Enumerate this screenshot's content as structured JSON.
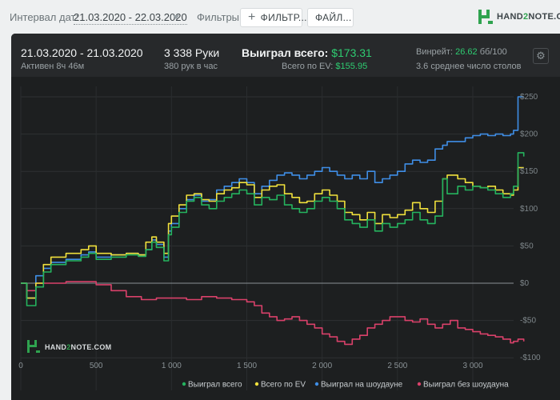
{
  "toolbar": {
    "date_interval_label": "Интервал дат:",
    "date_interval_value": "21.03.2020 - 22.03.2020",
    "filters_label": "Фильтры:",
    "filter_button": "ФИЛЬТР...",
    "file_button": "ФАЙЛ...",
    "logo_prefix": "HAND",
    "logo_two": "2",
    "logo_suffix": "NOTE.COM"
  },
  "stats": {
    "date_range": "21.03.2020 - 21.03.2020",
    "active": "Активен 8ч 46м",
    "hands": "3 338 Руки",
    "hands_per_hour": "380 рук в час",
    "won_total_label": "Выиграл всего:",
    "won_total_value": "$173.31",
    "ev_label": "Всего по EV:",
    "ev_value": "$155.95",
    "winrate_label": "Винрейт:",
    "winrate_value": "26.62",
    "winrate_unit": "бб/100",
    "avg_tables": "3.6 среднее число столов"
  },
  "colors": {
    "won_total": "#25b35e",
    "ev": "#f0e03c",
    "showdown": "#3f8ee6",
    "non_showdown": "#d9416a",
    "brand_green": "#2fa34f"
  },
  "watermark": {
    "prefix": "HAND",
    "two": "2",
    "suffix": "NOTE.COM"
  },
  "chart_data": {
    "type": "line",
    "x_ticks": [
      0,
      500,
      1000,
      1500,
      2000,
      2500,
      3000
    ],
    "x_tick_labels": [
      "0",
      "500",
      "1 000",
      "1 500",
      "2 000",
      "2 500",
      "3 000"
    ],
    "y_ticks": [
      -100,
      -50,
      0,
      50,
      100,
      150,
      200,
      250
    ],
    "y_tick_labels": [
      "-$100",
      "-$50",
      "$0",
      "$50",
      "$100",
      "$150",
      "$200",
      "$250"
    ],
    "xlim": [
      0,
      3338
    ],
    "ylim": [
      -100,
      260
    ],
    "legend_position": "bottom-center",
    "series": [
      {
        "name": "Выиграл всего",
        "color": "#25b35e",
        "points": [
          [
            0,
            0
          ],
          [
            40,
            -30
          ],
          [
            100,
            -5
          ],
          [
            150,
            15
          ],
          [
            200,
            25
          ],
          [
            300,
            30
          ],
          [
            400,
            35
          ],
          [
            450,
            40
          ],
          [
            500,
            32
          ],
          [
            600,
            35
          ],
          [
            700,
            38
          ],
          [
            780,
            36
          ],
          [
            830,
            45
          ],
          [
            870,
            55
          ],
          [
            900,
            48
          ],
          [
            950,
            30
          ],
          [
            980,
            65
          ],
          [
            1000,
            75
          ],
          [
            1050,
            95
          ],
          [
            1100,
            110
          ],
          [
            1150,
            115
          ],
          [
            1200,
            105
          ],
          [
            1250,
            100
          ],
          [
            1300,
            110
          ],
          [
            1350,
            115
          ],
          [
            1400,
            120
          ],
          [
            1450,
            125
          ],
          [
            1500,
            120
          ],
          [
            1550,
            105
          ],
          [
            1600,
            115
          ],
          [
            1650,
            112
          ],
          [
            1700,
            118
          ],
          [
            1750,
            105
          ],
          [
            1800,
            100
          ],
          [
            1850,
            95
          ],
          [
            1900,
            100
          ],
          [
            1950,
            110
          ],
          [
            2000,
            115
          ],
          [
            2050,
            110
          ],
          [
            2100,
            100
          ],
          [
            2150,
            85
          ],
          [
            2200,
            80
          ],
          [
            2250,
            75
          ],
          [
            2300,
            85
          ],
          [
            2350,
            70
          ],
          [
            2400,
            80
          ],
          [
            2450,
            75
          ],
          [
            2500,
            80
          ],
          [
            2550,
            85
          ],
          [
            2600,
            95
          ],
          [
            2650,
            85
          ],
          [
            2700,
            80
          ],
          [
            2750,
            90
          ],
          [
            2800,
            140
          ],
          [
            2830,
            120
          ],
          [
            2900,
            130
          ],
          [
            2950,
            125
          ],
          [
            3000,
            130
          ],
          [
            3050,
            128
          ],
          [
            3100,
            125
          ],
          [
            3150,
            120
          ],
          [
            3200,
            115
          ],
          [
            3250,
            120
          ],
          [
            3270,
            130
          ],
          [
            3300,
            175
          ],
          [
            3338,
            170
          ]
        ]
      },
      {
        "name": "Всего по EV",
        "color": "#f0e03c",
        "points": [
          [
            0,
            0
          ],
          [
            40,
            -20
          ],
          [
            100,
            0
          ],
          [
            150,
            25
          ],
          [
            200,
            35
          ],
          [
            300,
            40
          ],
          [
            400,
            45
          ],
          [
            450,
            50
          ],
          [
            500,
            40
          ],
          [
            600,
            38
          ],
          [
            700,
            40
          ],
          [
            780,
            38
          ],
          [
            830,
            55
          ],
          [
            870,
            62
          ],
          [
            900,
            55
          ],
          [
            950,
            40
          ],
          [
            980,
            80
          ],
          [
            1000,
            90
          ],
          [
            1050,
            105
          ],
          [
            1100,
            118
          ],
          [
            1150,
            120
          ],
          [
            1200,
            112
          ],
          [
            1250,
            110
          ],
          [
            1300,
            120
          ],
          [
            1350,
            125
          ],
          [
            1400,
            128
          ],
          [
            1450,
            135
          ],
          [
            1500,
            132
          ],
          [
            1550,
            115
          ],
          [
            1600,
            125
          ],
          [
            1650,
            130
          ],
          [
            1700,
            132
          ],
          [
            1750,
            120
          ],
          [
            1800,
            115
          ],
          [
            1850,
            108
          ],
          [
            1900,
            110
          ],
          [
            1950,
            120
          ],
          [
            2000,
            125
          ],
          [
            2050,
            118
          ],
          [
            2100,
            110
          ],
          [
            2150,
            95
          ],
          [
            2200,
            92
          ],
          [
            2250,
            85
          ],
          [
            2300,
            95
          ],
          [
            2350,
            80
          ],
          [
            2400,
            92
          ],
          [
            2450,
            88
          ],
          [
            2500,
            92
          ],
          [
            2550,
            98
          ],
          [
            2600,
            108
          ],
          [
            2650,
            100
          ],
          [
            2700,
            95
          ],
          [
            2750,
            110
          ],
          [
            2800,
            140
          ],
          [
            2830,
            145
          ],
          [
            2900,
            140
          ],
          [
            2950,
            135
          ],
          [
            3000,
            130
          ],
          [
            3050,
            128
          ],
          [
            3100,
            130
          ],
          [
            3150,
            125
          ],
          [
            3200,
            120
          ],
          [
            3250,
            118
          ],
          [
            3270,
            125
          ],
          [
            3300,
            155
          ],
          [
            3338,
            155
          ]
        ]
      },
      {
        "name": "Выиграл на шоудауне",
        "color": "#3f8ee6",
        "points": [
          [
            0,
            0
          ],
          [
            40,
            -20
          ],
          [
            100,
            10
          ],
          [
            150,
            20
          ],
          [
            200,
            28
          ],
          [
            300,
            32
          ],
          [
            400,
            38
          ],
          [
            450,
            42
          ],
          [
            500,
            35
          ],
          [
            600,
            38
          ],
          [
            700,
            40
          ],
          [
            780,
            38
          ],
          [
            830,
            45
          ],
          [
            870,
            58
          ],
          [
            900,
            52
          ],
          [
            950,
            35
          ],
          [
            980,
            70
          ],
          [
            1000,
            80
          ],
          [
            1050,
            100
          ],
          [
            1100,
            112
          ],
          [
            1150,
            118
          ],
          [
            1200,
            110
          ],
          [
            1250,
            112
          ],
          [
            1300,
            125
          ],
          [
            1350,
            130
          ],
          [
            1400,
            135
          ],
          [
            1450,
            140
          ],
          [
            1500,
            135
          ],
          [
            1550,
            120
          ],
          [
            1600,
            130
          ],
          [
            1650,
            138
          ],
          [
            1700,
            145
          ],
          [
            1750,
            148
          ],
          [
            1800,
            145
          ],
          [
            1850,
            140
          ],
          [
            1900,
            145
          ],
          [
            1950,
            150
          ],
          [
            2000,
            155
          ],
          [
            2050,
            150
          ],
          [
            2100,
            145
          ],
          [
            2150,
            140
          ],
          [
            2200,
            145
          ],
          [
            2250,
            140
          ],
          [
            2300,
            150
          ],
          [
            2350,
            135
          ],
          [
            2400,
            140
          ],
          [
            2450,
            145
          ],
          [
            2500,
            150
          ],
          [
            2550,
            160
          ],
          [
            2600,
            165
          ],
          [
            2650,
            162
          ],
          [
            2700,
            165
          ],
          [
            2750,
            180
          ],
          [
            2800,
            185
          ],
          [
            2830,
            190
          ],
          [
            2900,
            190
          ],
          [
            2950,
            195
          ],
          [
            3000,
            198
          ],
          [
            3050,
            200
          ],
          [
            3100,
            198
          ],
          [
            3150,
            200
          ],
          [
            3200,
            198
          ],
          [
            3250,
            200
          ],
          [
            3270,
            205
          ],
          [
            3300,
            250
          ],
          [
            3338,
            250
          ]
        ]
      },
      {
        "name": "Выиграл без шоудауна",
        "color": "#d9416a",
        "points": [
          [
            0,
            0
          ],
          [
            40,
            -10
          ],
          [
            100,
            0
          ],
          [
            200,
            0
          ],
          [
            300,
            2
          ],
          [
            400,
            2
          ],
          [
            500,
            -2
          ],
          [
            600,
            -10
          ],
          [
            700,
            -18
          ],
          [
            800,
            -22
          ],
          [
            900,
            -20
          ],
          [
            1000,
            -20
          ],
          [
            1100,
            -22
          ],
          [
            1200,
            -18
          ],
          [
            1300,
            -20
          ],
          [
            1400,
            -22
          ],
          [
            1500,
            -25
          ],
          [
            1550,
            -30
          ],
          [
            1600,
            -40
          ],
          [
            1650,
            -45
          ],
          [
            1700,
            -50
          ],
          [
            1750,
            -48
          ],
          [
            1800,
            -45
          ],
          [
            1850,
            -50
          ],
          [
            1900,
            -55
          ],
          [
            1950,
            -60
          ],
          [
            2000,
            -68
          ],
          [
            2050,
            -72
          ],
          [
            2100,
            -78
          ],
          [
            2150,
            -82
          ],
          [
            2200,
            -75
          ],
          [
            2250,
            -70
          ],
          [
            2300,
            -60
          ],
          [
            2350,
            -55
          ],
          [
            2400,
            -50
          ],
          [
            2450,
            -45
          ],
          [
            2500,
            -45
          ],
          [
            2550,
            -50
          ],
          [
            2600,
            -52
          ],
          [
            2650,
            -48
          ],
          [
            2700,
            -55
          ],
          [
            2750,
            -60
          ],
          [
            2800,
            -55
          ],
          [
            2850,
            -50
          ],
          [
            2900,
            -60
          ],
          [
            2950,
            -62
          ],
          [
            3000,
            -65
          ],
          [
            3050,
            -68
          ],
          [
            3100,
            -70
          ],
          [
            3150,
            -72
          ],
          [
            3200,
            -75
          ],
          [
            3250,
            -80
          ],
          [
            3270,
            -78
          ],
          [
            3300,
            -75
          ],
          [
            3338,
            -78
          ]
        ]
      }
    ]
  }
}
